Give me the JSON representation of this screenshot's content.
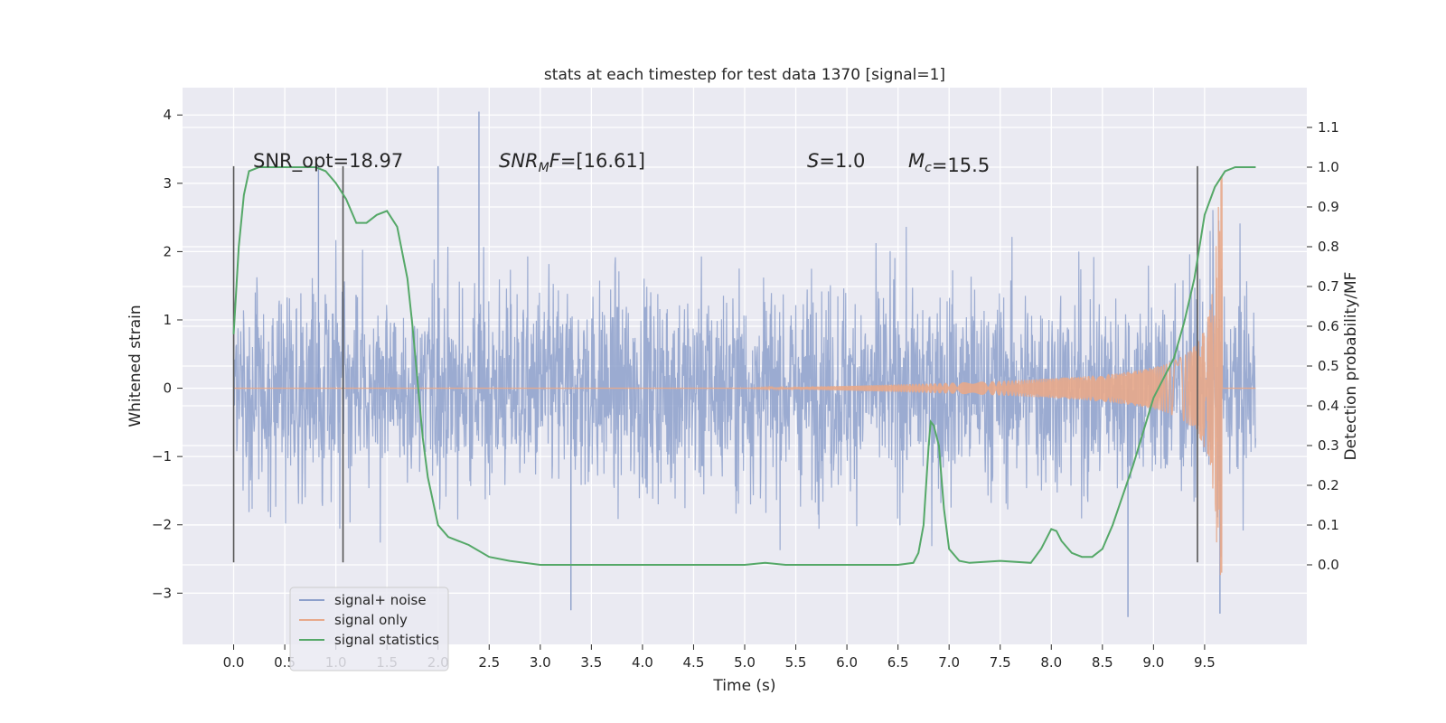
{
  "chart_data": {
    "type": "line",
    "title": "stats at each timestep for test data 1370 [signal=1]",
    "xlabel": "Time (s)",
    "ylabel": "Whitened strain",
    "ylabel_right": "Detection probability/MF",
    "xlim": [
      -0.5,
      10.5
    ],
    "ylim": [
      -3.75,
      4.4
    ],
    "ylim_right": [
      -0.2,
      1.2
    ],
    "x_ticks": [
      0.0,
      0.5,
      1.0,
      1.5,
      2.0,
      2.5,
      3.0,
      3.5,
      4.0,
      4.5,
      5.0,
      5.5,
      6.0,
      6.5,
      7.0,
      7.5,
      8.0,
      8.5,
      9.0,
      9.5
    ],
    "x_tick_labels": [
      "0.0",
      "0.5",
      "1.0",
      "1.5",
      "2.0",
      "2.5",
      "3.0",
      "3.5",
      "4.0",
      "4.5",
      "5.0",
      "5.5",
      "6.0",
      "6.5",
      "7.0",
      "7.5",
      "8.0",
      "8.5",
      "9.0",
      "9.5"
    ],
    "y_ticks": [
      -3,
      -2,
      -1,
      0,
      1,
      2,
      3,
      4
    ],
    "y_tick_labels": [
      "−3",
      "−2",
      "−1",
      "0",
      "1",
      "2",
      "3",
      "4"
    ],
    "y_right_ticks": [
      0.0,
      0.1,
      0.2,
      0.3,
      0.4,
      0.5,
      0.6,
      0.7,
      0.8,
      0.9,
      1.0,
      1.1
    ],
    "y_right_tick_labels": [
      "0.0",
      "0.1",
      "0.2",
      "0.3",
      "0.4",
      "0.5",
      "0.6",
      "0.7",
      "0.8",
      "0.9",
      "1.0",
      "1.1"
    ],
    "grid": true,
    "legend": {
      "placement": "lower-left",
      "entries": [
        {
          "name": "signal+ noise",
          "color": "#8da0cb"
        },
        {
          "name": "signal only",
          "color": "#e8a98a"
        },
        {
          "name": "signal statistics",
          "color": "#55a868"
        }
      ]
    },
    "annotations": [
      {
        "text": "SNR_opt=18.97"
      },
      {
        "text": "=[16.61]",
        "prefix_italic": "SNR",
        "prefix_sub": "M",
        "prefix_italic2": "F"
      },
      {
        "text": "=1.0",
        "prefix_italic": "S"
      },
      {
        "text": "=15.5",
        "prefix_italic": "M",
        "prefix_sub": "c"
      }
    ],
    "vertical_markers": [
      {
        "x": 0.0,
        "y_range": [
          -2.55,
          3.25
        ]
      },
      {
        "x": 1.07,
        "y_range": [
          -2.55,
          3.25
        ]
      },
      {
        "x": 9.43,
        "y_range": [
          -2.55,
          3.25
        ]
      }
    ],
    "series": [
      {
        "name": "signal+ noise",
        "color": "#8da0cb",
        "x_range": [
          0.0,
          10.0
        ],
        "typical_amplitude": 1.6,
        "notable_peaks": [
          {
            "x": 0.83,
            "y": 3.25
          },
          {
            "x": 2.4,
            "y": 4.05
          },
          {
            "x": 2.0,
            "y": 3.25
          },
          {
            "x": 3.3,
            "y": -3.25
          },
          {
            "x": 8.75,
            "y": -3.35
          },
          {
            "x": 9.65,
            "y": -3.3
          }
        ]
      },
      {
        "name": "signal only",
        "color": "#e8a98a",
        "chirp": {
          "start_x": 5.0,
          "merger_x": 9.67,
          "start_amplitude": 0.0,
          "peak_positive": 3.1,
          "peak_negative": -2.7,
          "end_x": 10.0
        }
      },
      {
        "name": "signal statistics",
        "color": "#55a868",
        "axis": "right",
        "x": [
          0.0,
          0.05,
          0.1,
          0.15,
          0.25,
          0.4,
          0.6,
          0.8,
          0.9,
          1.0,
          1.1,
          1.2,
          1.3,
          1.4,
          1.5,
          1.6,
          1.7,
          1.75,
          1.8,
          1.85,
          1.9,
          2.0,
          2.1,
          2.3,
          2.5,
          2.7,
          3.0,
          3.5,
          4.0,
          4.5,
          5.0,
          5.2,
          5.4,
          6.0,
          6.5,
          6.65,
          6.7,
          6.75,
          6.8,
          6.82,
          6.85,
          6.9,
          6.95,
          7.0,
          7.1,
          7.2,
          7.5,
          7.8,
          7.9,
          8.0,
          8.05,
          8.1,
          8.2,
          8.3,
          8.4,
          8.5,
          8.6,
          8.8,
          9.0,
          9.2,
          9.3,
          9.4,
          9.45,
          9.5,
          9.6,
          9.7,
          9.8,
          10.0
        ],
        "y": [
          0.58,
          0.8,
          0.93,
          0.99,
          1.0,
          1.0,
          1.0,
          1.0,
          0.99,
          0.96,
          0.92,
          0.86,
          0.86,
          0.88,
          0.89,
          0.85,
          0.72,
          0.6,
          0.46,
          0.32,
          0.22,
          0.1,
          0.07,
          0.05,
          0.02,
          0.01,
          0.0,
          0.0,
          0.0,
          0.0,
          0.0,
          0.005,
          0.0,
          0.0,
          0.0,
          0.005,
          0.03,
          0.1,
          0.3,
          0.36,
          0.35,
          0.3,
          0.14,
          0.04,
          0.01,
          0.005,
          0.01,
          0.005,
          0.04,
          0.09,
          0.085,
          0.06,
          0.03,
          0.02,
          0.02,
          0.04,
          0.1,
          0.25,
          0.42,
          0.52,
          0.61,
          0.72,
          0.8,
          0.88,
          0.95,
          0.99,
          1.0,
          1.0
        ]
      }
    ]
  }
}
